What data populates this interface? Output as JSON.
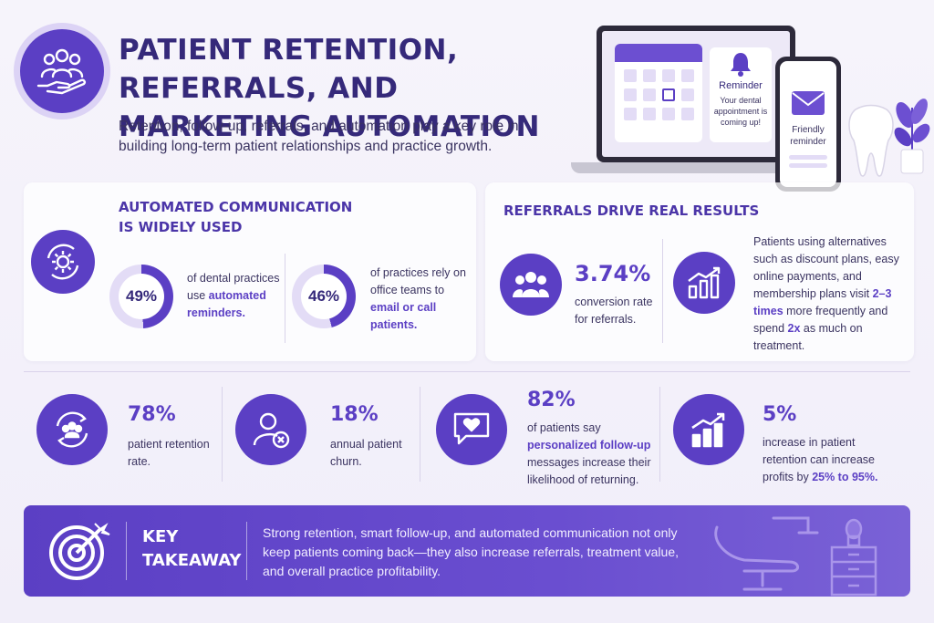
{
  "header": {
    "title": "PATIENT RETENTION, REFERRALS, AND MARKETING AUTOMATION",
    "subtitle": "Retention, follow-up, referrals, and automation play a key role in building long-term patient relationships and practice growth."
  },
  "hero": {
    "reminder_title": "Reminder",
    "reminder_text": "Your dental appointment is coming up!",
    "phone_text": "Friendly reminder"
  },
  "automated": {
    "title": "AUTOMATED COMMUNICATION IS WIDELY USED",
    "stats": [
      {
        "value": "49%",
        "percent": 49,
        "text_plain": "of dental practices use ",
        "text_highlight": "automated reminders."
      },
      {
        "value": "46%",
        "percent": 46,
        "text_plain": "of practices rely on office teams to ",
        "text_highlight": "email or call patients."
      }
    ]
  },
  "referrals": {
    "title": "REFERRALS DRIVE REAL RESULTS",
    "value": "3.74%",
    "value_text": "conversion rate for referrals.",
    "alt_text_1": "Patients using alternatives such as discount plans, easy online payments, and membership plans visit ",
    "alt_highlight_1": "2–3 times",
    "alt_text_2": " more frequently and spend ",
    "alt_highlight_2": "2x",
    "alt_text_3": " as much on treatment."
  },
  "metrics": [
    {
      "value": "78%",
      "text": "patient retention rate."
    },
    {
      "value": "18%",
      "text": "annual patient churn."
    },
    {
      "value": "82%",
      "text_plain": "of patients say ",
      "text_highlight": "personalized follow-up",
      "text_end": " messages increase their likelihood of returning."
    },
    {
      "value": "5%",
      "text_plain": "increase in patient retention can increase profits by ",
      "text_highlight": "25% to 95%."
    }
  ],
  "takeaway": {
    "title": "KEY TAKEAWAY",
    "text": "Strong retention, smart follow-up, and automated communication not only keep patients coming back—they also increase referrals, treatment value, and overall practice profitability."
  },
  "colors": {
    "primary": "#5b3fc4",
    "dark": "#35297a",
    "light": "#e3dcf6"
  }
}
